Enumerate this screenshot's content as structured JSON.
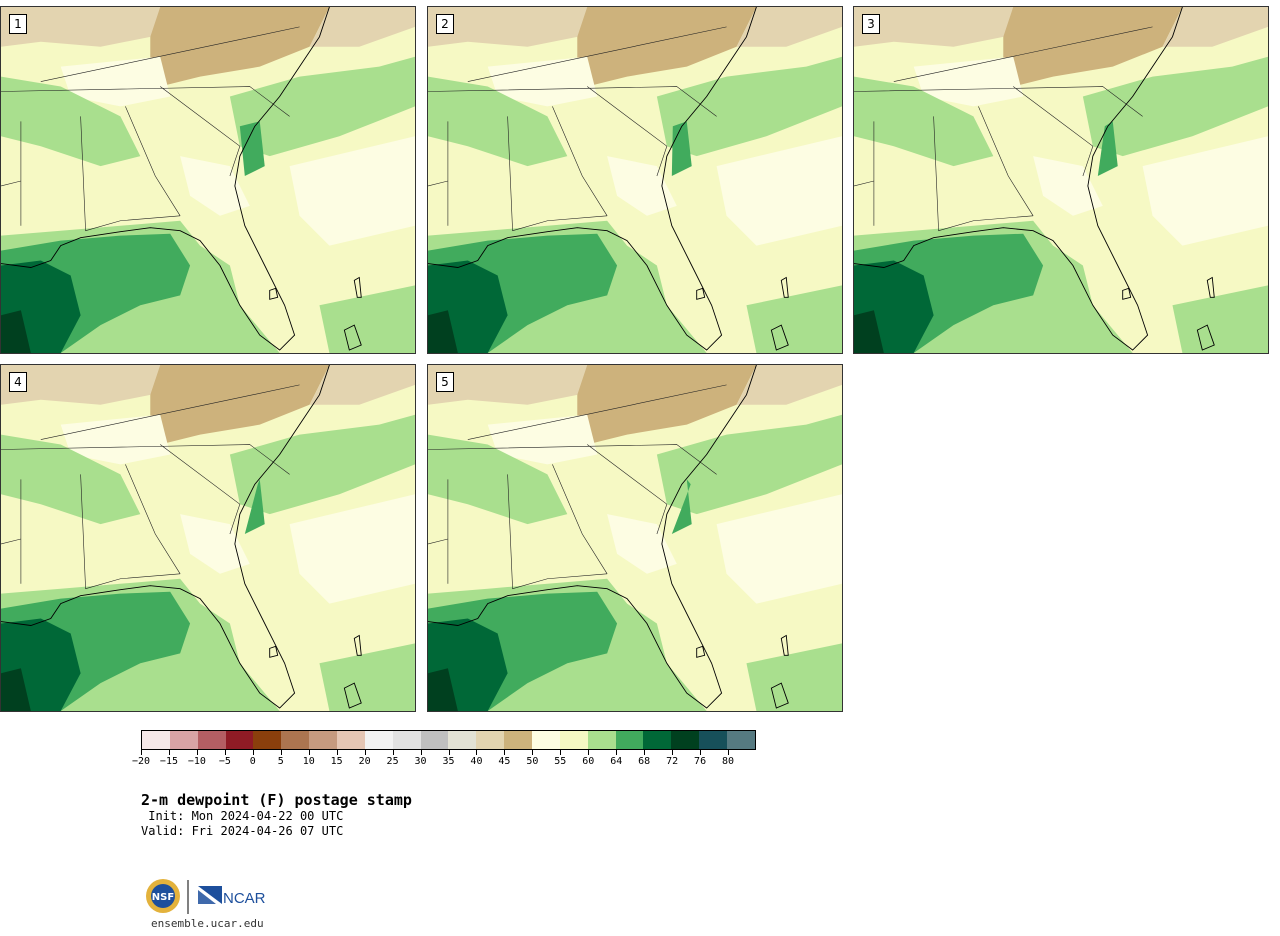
{
  "panels": [
    {
      "label": "1"
    },
    {
      "label": "2"
    },
    {
      "label": "3"
    },
    {
      "label": "4"
    },
    {
      "label": "5"
    }
  ],
  "colorbar": {
    "colors": [
      "#f6e9e9",
      "#d8a3a5",
      "#b45e63",
      "#8f1b25",
      "#8a3f0c",
      "#ac7550",
      "#c69a7f",
      "#e5c6b4",
      "#f2f2f2",
      "#e1e1e1",
      "#bfbfbf",
      "#e3e2d4",
      "#e3d4b0",
      "#cdb27c",
      "#fdfde3",
      "#f6f9c4",
      "#a9df8e",
      "#41ab5d",
      "#006837",
      "#00401f",
      "#17505a",
      "#567a81"
    ],
    "tick_labels": [
      "-20",
      "-15",
      "-10",
      "-5",
      "0",
      "5",
      "10",
      "15",
      "20",
      "25",
      "30",
      "35",
      "40",
      "45",
      "50",
      "55",
      "60",
      "64",
      "68",
      "72",
      "76",
      "80"
    ]
  },
  "text": {
    "title": "2-m dewpoint (F) postage stamp",
    "init": " Init: Mon 2024-04-22 00 UTC",
    "valid": "Valid: Fri 2024-04-26 07 UTC",
    "logo_nsf": "NSF",
    "logo_ncar": "NCAR",
    "url": "ensemble.ucar.edu"
  }
}
